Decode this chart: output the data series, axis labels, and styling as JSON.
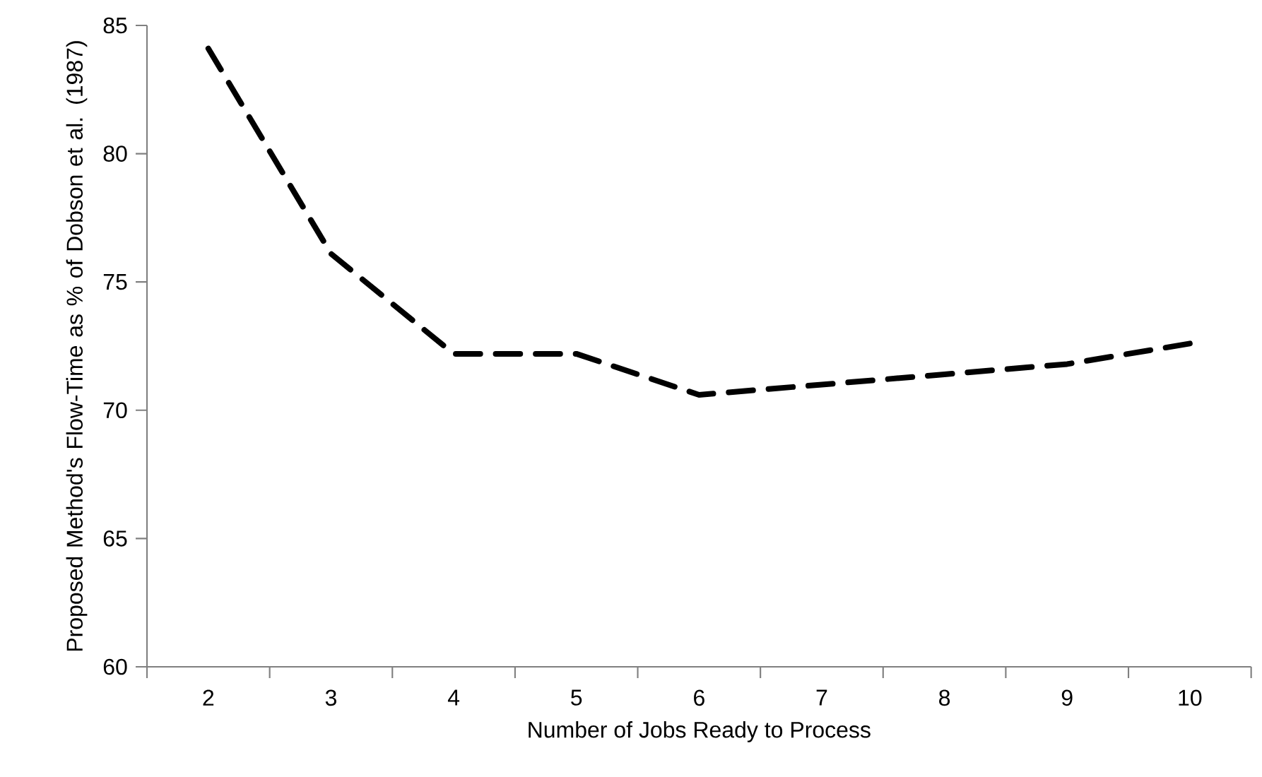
{
  "chart_data": {
    "type": "line",
    "xlabel": "Number of Jobs Ready to Process",
    "ylabel": "Proposed Method's Flow-Time as % of Dobson et al. (1987)",
    "categories": [
      "2",
      "3",
      "4",
      "5",
      "6",
      "7",
      "8",
      "9",
      "10"
    ],
    "series": [
      {
        "color": "#000000",
        "values": [
          84.1,
          76.1,
          72.2,
          72.2,
          70.6,
          71.0,
          71.4,
          71.8,
          72.6
        ]
      }
    ],
    "ylim": [
      60,
      85
    ],
    "yticks": [
      60,
      65,
      70,
      75,
      80,
      85
    ],
    "line_style": "dashed"
  }
}
